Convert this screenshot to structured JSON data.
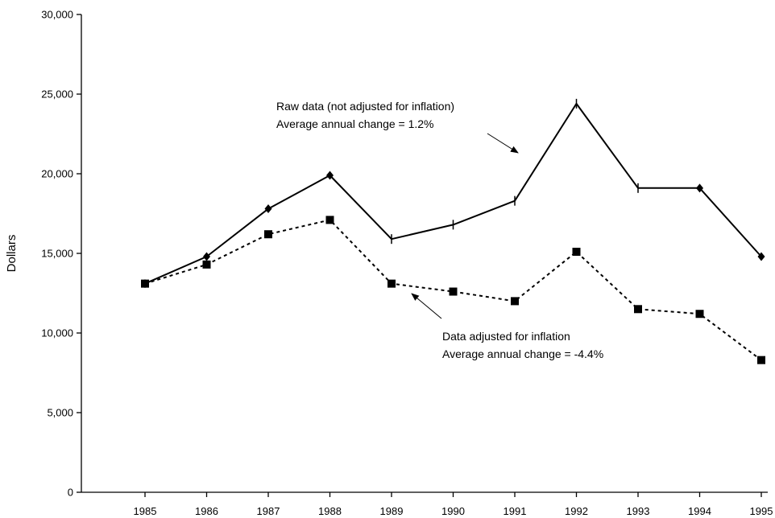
{
  "chart_data": {
    "type": "line",
    "title": "",
    "xlabel": "",
    "ylabel": "Dollars",
    "ylim": [
      0,
      30000
    ],
    "yticks": [
      0,
      5000,
      10000,
      15000,
      20000,
      25000,
      30000
    ],
    "ytick_labels": [
      "0",
      "5,000",
      "10,000",
      "15,000",
      "20,000",
      "25,000",
      "30,000"
    ],
    "categories": [
      "1985",
      "1986",
      "1987",
      "1988",
      "1989",
      "1990",
      "1991",
      "1992",
      "1993",
      "1994",
      "1995"
    ],
    "grid": false,
    "series": [
      {
        "key": "raw",
        "values": [
          13100,
          14800,
          17800,
          19900,
          15900,
          16800,
          18300,
          24400,
          19100,
          19100,
          14800
        ],
        "line_style": "solid",
        "color": "#000000",
        "markers": [
          "diamond",
          "diamond",
          "diamond",
          "diamond",
          "tick",
          "tick",
          "tick",
          "tick",
          "tick",
          "diamond",
          "diamond"
        ]
      },
      {
        "key": "adjusted",
        "values": [
          13100,
          14300,
          16200,
          17100,
          13100,
          12600,
          12000,
          15100,
          11500,
          11200,
          8300
        ],
        "line_style": "dashed",
        "color": "#000000",
        "markers": [
          "square",
          "square",
          "square",
          "square",
          "square",
          "square",
          "square",
          "square",
          "square",
          "square",
          "square"
        ]
      }
    ],
    "annotations": [
      {
        "key": "raw",
        "lines": [
          "Raw data (not adjusted for inflation)",
          "Average annual change = 1.2%"
        ],
        "arrow_to_category": "1991",
        "arrow_to_value": 21500,
        "arrow_from_category": "1990",
        "arrow_from_value": 22800
      },
      {
        "key": "adjusted",
        "lines": [
          "Data adjusted for inflation",
          "Average annual change = -4.4%"
        ],
        "arrow_to_category": "1989",
        "arrow_to_value": 12500,
        "arrow_from_category": "1990",
        "arrow_from_value": 10700
      }
    ]
  }
}
